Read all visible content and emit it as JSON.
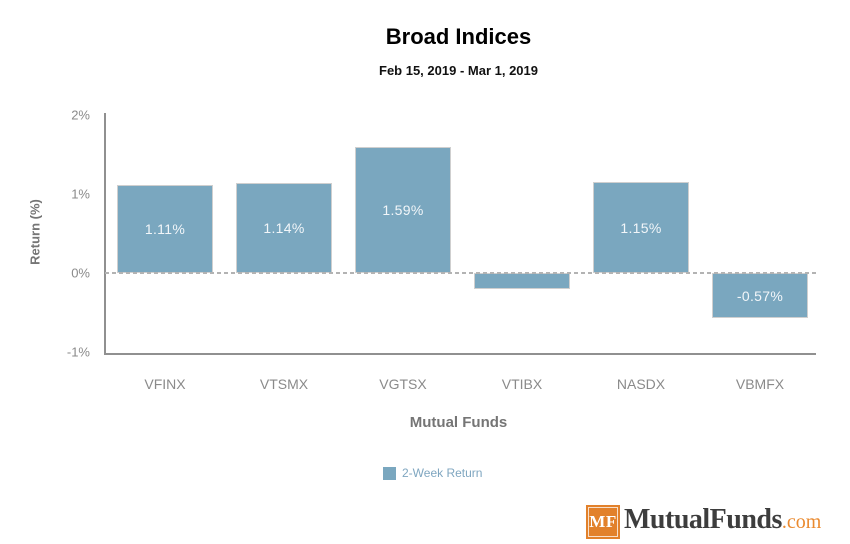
{
  "chart_data": {
    "type": "bar",
    "title": "Broad Indices",
    "subtitle": "Feb 15, 2019 - Mar 1, 2019",
    "categories": [
      "VFINX",
      "VTSMX",
      "VGTSX",
      "VTIBX",
      "NASDX",
      "VBMFX"
    ],
    "series": [
      {
        "name": "2-Week Return",
        "values": [
          1.11,
          1.14,
          1.59,
          -0.2,
          1.15,
          -0.57
        ],
        "labels": [
          "1.11%",
          "1.14%",
          "1.59%",
          "",
          "1.15%",
          "-0.57%"
        ]
      }
    ],
    "xlabel": "Mutual Funds",
    "ylabel": "Return (%)",
    "ylim": [
      -1,
      2
    ],
    "y_ticks": [
      {
        "label": "2%",
        "value": 2
      },
      {
        "label": "1%",
        "value": 1
      },
      {
        "label": "0%",
        "value": 0
      },
      {
        "label": "-1%",
        "value": -1
      }
    ],
    "grid": false,
    "zero_line_style": "dashed",
    "legend_position": "bottom",
    "bar_color": "#7aa7bf"
  },
  "legend": {
    "label": "2-Week Return"
  },
  "logo": {
    "badge": "MF",
    "name": "MutualFunds",
    "tld": ".com"
  },
  "colors": {
    "bar": "#7aa7bf",
    "bar_label": "#f2f6f9",
    "axis_text": "#8a8a8a",
    "axis_label": "#757575",
    "legend_text": "#7fa6c0",
    "axis_line": "#909090",
    "zero_dash": "#b3b3b3",
    "logo_badge_orange": "#e2812b",
    "logo_com_orange": "#ea8a2f",
    "logo_text": "#3d3d3d"
  }
}
